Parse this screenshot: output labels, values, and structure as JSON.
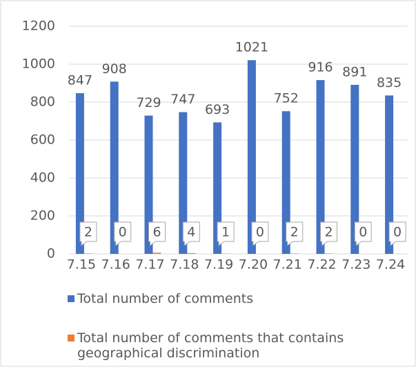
{
  "chart_data": {
    "type": "bar",
    "categories": [
      "7.15",
      "7.16",
      "7.17",
      "7.18",
      "7.19",
      "7.20",
      "7.21",
      "7.22",
      "7.23",
      "7.24"
    ],
    "series": [
      {
        "name": "Total number of comments",
        "color": "#4472c4",
        "values": [
          847,
          908,
          729,
          747,
          693,
          1021,
          752,
          916,
          891,
          835
        ]
      },
      {
        "name": "Total number of comments that contains geographical discrimination",
        "color": "#ed7d31",
        "values": [
          2,
          0,
          6,
          4,
          1,
          0,
          2,
          2,
          0,
          0
        ]
      }
    ],
    "ylim": [
      0,
      1200
    ],
    "yticks": [
      0,
      200,
      400,
      600,
      800,
      1000,
      1200
    ],
    "grid": true,
    "legend": "bottom"
  }
}
